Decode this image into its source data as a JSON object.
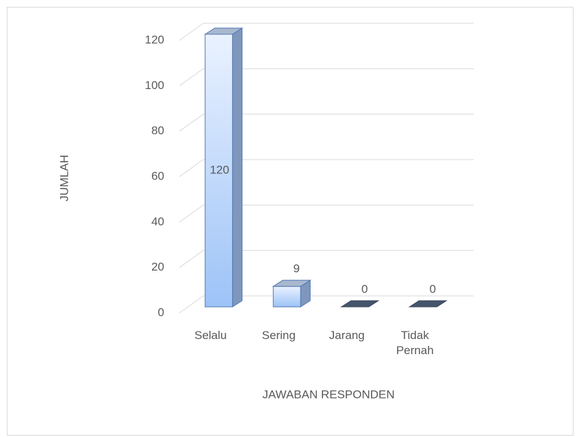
{
  "chart_data": {
    "type": "bar3d",
    "categories": [
      "Selalu",
      "Sering",
      "Jarang",
      "Tidak Pernah"
    ],
    "values": [
      120,
      9,
      0,
      0
    ],
    "ylim": [
      0,
      120
    ],
    "yticks": [
      0,
      20,
      40,
      60,
      80,
      100,
      120
    ],
    "grid": true,
    "x_label": "JAWABAN RESPONDEN",
    "y_label": "JUMLAH",
    "color": "#9dc3f7"
  }
}
